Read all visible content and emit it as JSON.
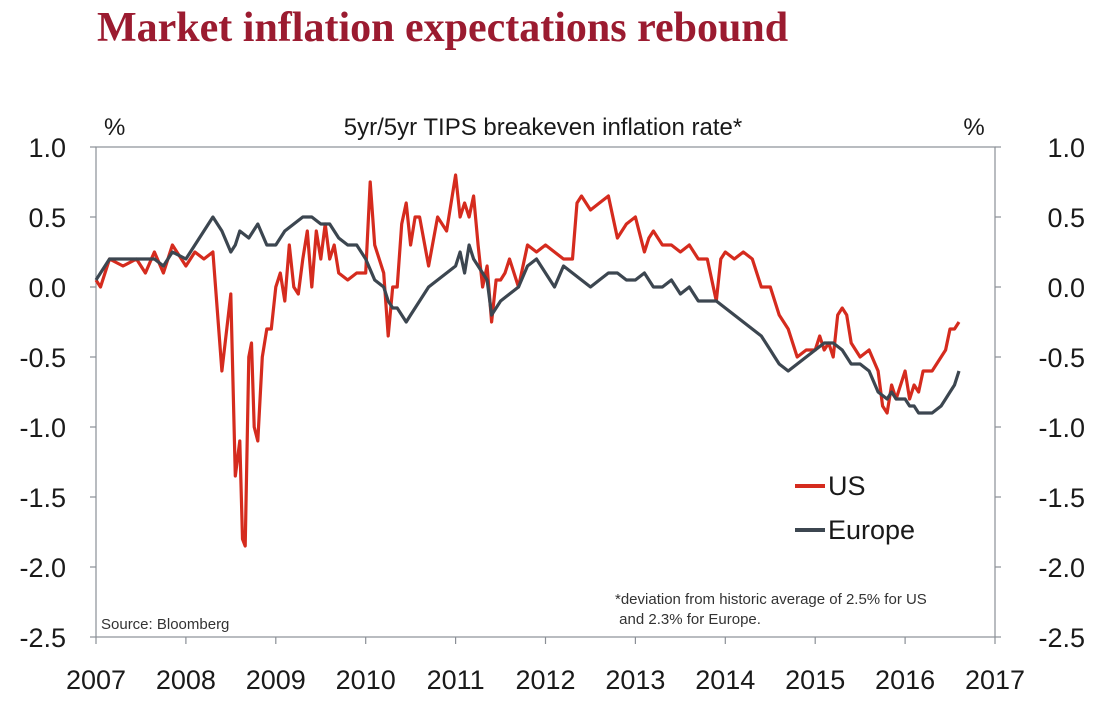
{
  "headline": "Market inflation expectations rebound",
  "colors": {
    "headline": "#9b1b30",
    "us": "#d52b1e",
    "europe": "#3c4650",
    "axis": "#8a8f96"
  },
  "chart_data": {
    "type": "line",
    "title": "5yr/5yr TIPS breakeven inflation rate*",
    "ylabel_left": "%",
    "ylabel_right": "%",
    "xlabel": "",
    "xlim": [
      2007,
      2017
    ],
    "ylim": [
      -2.5,
      1.0
    ],
    "x_ticks": [
      "2007",
      "2008",
      "2009",
      "2010",
      "2011",
      "2012",
      "2013",
      "2014",
      "2015",
      "2016",
      "2017"
    ],
    "y_ticks": [
      "1.0",
      "0.5",
      "0.0",
      "-0.5",
      "-1.0",
      "-1.5",
      "-2.0",
      "-2.5"
    ],
    "legend": {
      "position": "right-middle",
      "entries": [
        "US",
        "Europe"
      ]
    },
    "source": "Source: Bloomberg",
    "footnote": [
      "*deviation from historic average of 2.5% for US",
      " and 2.3% for Europe."
    ],
    "series": [
      {
        "name": "US",
        "color": "#d52b1e",
        "x": [
          2007.0,
          2007.05,
          2007.15,
          2007.3,
          2007.45,
          2007.55,
          2007.65,
          2007.75,
          2007.85,
          2008.0,
          2008.1,
          2008.2,
          2008.3,
          2008.4,
          2008.5,
          2008.55,
          2008.6,
          2008.63,
          2008.66,
          2008.7,
          2008.73,
          2008.76,
          2008.8,
          2008.85,
          2008.9,
          2008.95,
          2009.0,
          2009.05,
          2009.1,
          2009.15,
          2009.2,
          2009.25,
          2009.3,
          2009.35,
          2009.4,
          2009.45,
          2009.5,
          2009.55,
          2009.6,
          2009.65,
          2009.7,
          2009.8,
          2009.9,
          2010.0,
          2010.05,
          2010.1,
          2010.2,
          2010.25,
          2010.3,
          2010.35,
          2010.4,
          2010.45,
          2010.5,
          2010.55,
          2010.6,
          2010.7,
          2010.8,
          2010.9,
          2011.0,
          2011.05,
          2011.1,
          2011.15,
          2011.2,
          2011.25,
          2011.3,
          2011.35,
          2011.4,
          2011.45,
          2011.5,
          2011.55,
          2011.6,
          2011.7,
          2011.8,
          2011.9,
          2012.0,
          2012.1,
          2012.2,
          2012.3,
          2012.35,
          2012.4,
          2012.5,
          2012.6,
          2012.7,
          2012.8,
          2012.9,
          2013.0,
          2013.1,
          2013.15,
          2013.2,
          2013.3,
          2013.4,
          2013.5,
          2013.6,
          2013.7,
          2013.8,
          2013.9,
          2013.95,
          2014.0,
          2014.1,
          2014.2,
          2014.3,
          2014.4,
          2014.5,
          2014.6,
          2014.7,
          2014.8,
          2014.9,
          2015.0,
          2015.05,
          2015.1,
          2015.15,
          2015.2,
          2015.25,
          2015.3,
          2015.35,
          2015.4,
          2015.5,
          2015.6,
          2015.7,
          2015.75,
          2015.8,
          2015.85,
          2015.9,
          2016.0,
          2016.05,
          2016.1,
          2016.15,
          2016.2,
          2016.3,
          2016.4,
          2016.45,
          2016.5,
          2016.55,
          2016.6
        ],
        "values": [
          0.05,
          0.0,
          0.2,
          0.15,
          0.2,
          0.1,
          0.25,
          0.1,
          0.3,
          0.15,
          0.25,
          0.2,
          0.25,
          -0.6,
          -0.05,
          -1.35,
          -1.1,
          -1.8,
          -1.85,
          -0.5,
          -0.4,
          -1.0,
          -1.1,
          -0.5,
          -0.3,
          -0.3,
          0.0,
          0.1,
          -0.1,
          0.3,
          0.0,
          -0.05,
          0.2,
          0.4,
          0.0,
          0.4,
          0.2,
          0.45,
          0.2,
          0.3,
          0.1,
          0.05,
          0.1,
          0.1,
          0.75,
          0.3,
          0.1,
          -0.35,
          0.0,
          0.0,
          0.45,
          0.6,
          0.3,
          0.5,
          0.5,
          0.15,
          0.5,
          0.4,
          0.8,
          0.5,
          0.6,
          0.5,
          0.65,
          0.3,
          0.0,
          0.15,
          -0.25,
          0.05,
          0.05,
          0.1,
          0.2,
          0.0,
          0.3,
          0.25,
          0.3,
          0.25,
          0.2,
          0.2,
          0.6,
          0.65,
          0.55,
          0.6,
          0.65,
          0.35,
          0.45,
          0.5,
          0.25,
          0.35,
          0.4,
          0.3,
          0.3,
          0.25,
          0.3,
          0.2,
          0.2,
          -0.1,
          0.2,
          0.25,
          0.2,
          0.25,
          0.2,
          0.0,
          0.0,
          -0.2,
          -0.3,
          -0.5,
          -0.45,
          -0.45,
          -0.35,
          -0.45,
          -0.4,
          -0.5,
          -0.2,
          -0.15,
          -0.2,
          -0.4,
          -0.5,
          -0.45,
          -0.6,
          -0.85,
          -0.9,
          -0.7,
          -0.8,
          -0.6,
          -0.8,
          -0.7,
          -0.75,
          -0.6,
          -0.6,
          -0.5,
          -0.45,
          -0.3,
          -0.3,
          -0.25
        ]
      },
      {
        "name": "Europe",
        "color": "#3c4650",
        "x": [
          2007.0,
          2007.05,
          2007.15,
          2007.3,
          2007.45,
          2007.55,
          2007.65,
          2007.75,
          2007.85,
          2008.0,
          2008.1,
          2008.2,
          2008.3,
          2008.4,
          2008.5,
          2008.55,
          2008.6,
          2008.7,
          2008.8,
          2008.9,
          2009.0,
          2009.1,
          2009.2,
          2009.3,
          2009.4,
          2009.5,
          2009.6,
          2009.7,
          2009.8,
          2009.9,
          2010.0,
          2010.1,
          2010.2,
          2010.25,
          2010.3,
          2010.35,
          2010.4,
          2010.45,
          2010.5,
          2010.6,
          2010.7,
          2010.8,
          2010.9,
          2011.0,
          2011.05,
          2011.1,
          2011.15,
          2011.2,
          2011.3,
          2011.35,
          2011.4,
          2011.5,
          2011.6,
          2011.7,
          2011.8,
          2011.9,
          2012.0,
          2012.1,
          2012.2,
          2012.3,
          2012.4,
          2012.5,
          2012.6,
          2012.7,
          2012.8,
          2012.9,
          2013.0,
          2013.1,
          2013.2,
          2013.3,
          2013.4,
          2013.5,
          2013.6,
          2013.7,
          2013.8,
          2013.9,
          2014.0,
          2014.1,
          2014.2,
          2014.3,
          2014.4,
          2014.5,
          2014.55,
          2014.6,
          2014.7,
          2014.8,
          2014.9,
          2015.0,
          2015.1,
          2015.2,
          2015.3,
          2015.4,
          2015.5,
          2015.6,
          2015.7,
          2015.8,
          2015.85,
          2015.9,
          2016.0,
          2016.05,
          2016.1,
          2016.15,
          2016.2,
          2016.25,
          2016.3,
          2016.4,
          2016.45,
          2016.5,
          2016.55,
          2016.6
        ],
        "values": [
          0.05,
          0.1,
          0.2,
          0.2,
          0.2,
          0.2,
          0.2,
          0.15,
          0.25,
          0.2,
          0.3,
          0.4,
          0.5,
          0.4,
          0.25,
          0.3,
          0.4,
          0.35,
          0.45,
          0.3,
          0.3,
          0.4,
          0.45,
          0.5,
          0.5,
          0.45,
          0.45,
          0.35,
          0.3,
          0.3,
          0.2,
          0.05,
          0.0,
          -0.1,
          -0.15,
          -0.15,
          -0.2,
          -0.25,
          -0.2,
          -0.1,
          0.0,
          0.05,
          0.1,
          0.15,
          0.25,
          0.1,
          0.3,
          0.2,
          0.1,
          0.05,
          -0.2,
          -0.1,
          -0.05,
          0.0,
          0.15,
          0.2,
          0.1,
          0.0,
          0.15,
          0.1,
          0.05,
          0.0,
          0.05,
          0.1,
          0.1,
          0.05,
          0.05,
          0.1,
          0.0,
          0.0,
          0.05,
          -0.05,
          0.0,
          -0.1,
          -0.1,
          -0.1,
          -0.15,
          -0.2,
          -0.25,
          -0.3,
          -0.35,
          -0.45,
          -0.5,
          -0.55,
          -0.6,
          -0.55,
          -0.5,
          -0.45,
          -0.4,
          -0.4,
          -0.45,
          -0.55,
          -0.55,
          -0.6,
          -0.75,
          -0.8,
          -0.75,
          -0.8,
          -0.8,
          -0.85,
          -0.85,
          -0.9,
          -0.9,
          -0.9,
          -0.9,
          -0.85,
          -0.8,
          -0.75,
          -0.7,
          -0.6
        ]
      }
    ]
  }
}
